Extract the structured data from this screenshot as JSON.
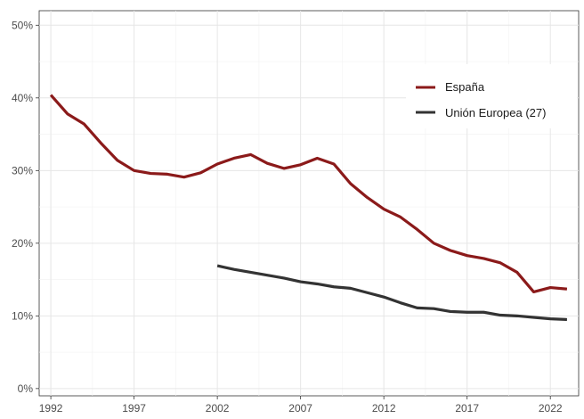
{
  "chart_data": {
    "type": "line",
    "title": "",
    "xlabel": "",
    "ylabel": "",
    "xlim": [
      1991.3,
      2023.7
    ],
    "ylim": [
      -1,
      52
    ],
    "x_ticks": [
      1992,
      1997,
      2002,
      2007,
      2012,
      2017,
      2022
    ],
    "y_ticks": [
      0,
      10,
      20,
      30,
      40,
      50
    ],
    "y_tick_labels": [
      "0%",
      "10%",
      "20%",
      "30%",
      "40%",
      "50%"
    ],
    "grid": true,
    "legend_position": "top-right",
    "series": [
      {
        "name": "España",
        "color": "#8b1a1a",
        "x": [
          1992,
          1993,
          1994,
          1995,
          1996,
          1997,
          1998,
          1999,
          2000,
          2001,
          2002,
          2003,
          2004,
          2005,
          2006,
          2007,
          2008,
          2009,
          2010,
          2011,
          2012,
          2013,
          2014,
          2015,
          2016,
          2017,
          2018,
          2019,
          2020,
          2021,
          2022,
          2023
        ],
        "y": [
          40.4,
          37.8,
          36.4,
          33.8,
          31.4,
          30.0,
          29.6,
          29.5,
          29.1,
          29.7,
          30.9,
          31.7,
          32.2,
          31.0,
          30.3,
          30.8,
          31.7,
          30.9,
          28.2,
          26.3,
          24.7,
          23.6,
          21.9,
          20.0,
          19.0,
          18.3,
          17.9,
          17.3,
          16.0,
          13.3,
          13.9,
          13.7
        ]
      },
      {
        "name": "Unión Europea (27)",
        "color": "#333333",
        "x": [
          2002,
          2003,
          2004,
          2005,
          2006,
          2007,
          2008,
          2009,
          2010,
          2011,
          2012,
          2013,
          2014,
          2015,
          2016,
          2017,
          2018,
          2019,
          2020,
          2021,
          2022,
          2023
        ],
        "y": [
          16.9,
          16.4,
          16.0,
          15.6,
          15.2,
          14.7,
          14.4,
          14.0,
          13.8,
          13.2,
          12.6,
          11.8,
          11.1,
          11.0,
          10.6,
          10.5,
          10.5,
          10.1,
          10.0,
          9.8,
          9.6,
          9.5
        ]
      }
    ]
  }
}
